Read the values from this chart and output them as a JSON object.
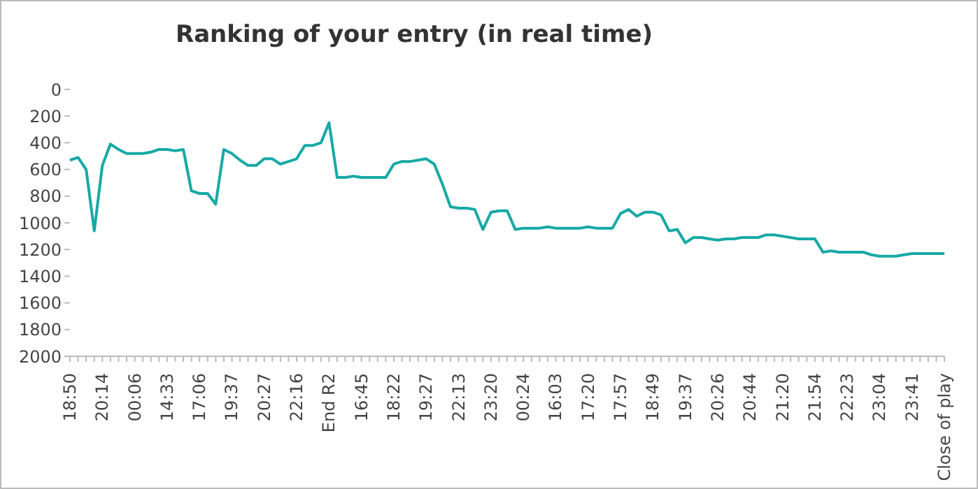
{
  "chart_data": {
    "type": "line",
    "title": "Ranking of your entry (in real time)",
    "categories": [
      "18:50",
      null,
      null,
      null,
      "20:14",
      null,
      null,
      null,
      "00:06",
      null,
      null,
      null,
      "14:33",
      null,
      null,
      null,
      "17:06",
      null,
      null,
      null,
      "19:37",
      null,
      null,
      null,
      "20:27",
      null,
      null,
      null,
      "22:16",
      null,
      null,
      null,
      "End R2",
      null,
      null,
      null,
      "16:45",
      null,
      null,
      null,
      "18:22",
      null,
      null,
      null,
      "19:27",
      null,
      null,
      null,
      "22:13",
      null,
      null,
      null,
      "23:20",
      null,
      null,
      null,
      "00:24",
      null,
      null,
      null,
      "16:03",
      null,
      null,
      null,
      "17:20",
      null,
      null,
      null,
      "17:57",
      null,
      null,
      null,
      "18:49",
      null,
      null,
      null,
      "19:37",
      null,
      null,
      null,
      "20:26",
      null,
      null,
      null,
      "20:44",
      null,
      null,
      null,
      "21:20",
      null,
      null,
      null,
      "21:54",
      null,
      null,
      null,
      "22:23",
      null,
      null,
      null,
      "23:04",
      null,
      null,
      null,
      "23:41",
      null,
      null,
      null,
      "Close of play"
    ],
    "series": [
      {
        "color": "#17a9a5",
        "values": [
          530,
          510,
          600,
          1060,
          570,
          410,
          450,
          480,
          480,
          480,
          470,
          450,
          450,
          460,
          450,
          760,
          780,
          780,
          860,
          450,
          480,
          530,
          570,
          570,
          520,
          520,
          560,
          540,
          520,
          420,
          420,
          400,
          250,
          660,
          660,
          650,
          660,
          660,
          660,
          660,
          560,
          540,
          540,
          530,
          520,
          560,
          710,
          880,
          890,
          890,
          900,
          1050,
          920,
          910,
          910,
          1050,
          1040,
          1040,
          1040,
          1030,
          1040,
          1040,
          1040,
          1040,
          1030,
          1040,
          1040,
          1040,
          930,
          900,
          950,
          920,
          920,
          940,
          1060,
          1050,
          1150,
          1110,
          1110,
          1120,
          1130,
          1120,
          1120,
          1110,
          1110,
          1110,
          1090,
          1090,
          1100,
          1110,
          1120,
          1120,
          1120,
          1220,
          1210,
          1220,
          1220,
          1220,
          1220,
          1240,
          1250,
          1250,
          1250,
          1240,
          1230,
          1230,
          1230,
          1230,
          1230
        ]
      }
    ],
    "ylim": [
      2000,
      0
    ],
    "yticks": [
      0,
      200,
      400,
      600,
      800,
      1000,
      1200,
      1400,
      1600,
      1800,
      2000
    ],
    "grid": false,
    "legend": false,
    "marker": "none",
    "line_style": "solid"
  }
}
